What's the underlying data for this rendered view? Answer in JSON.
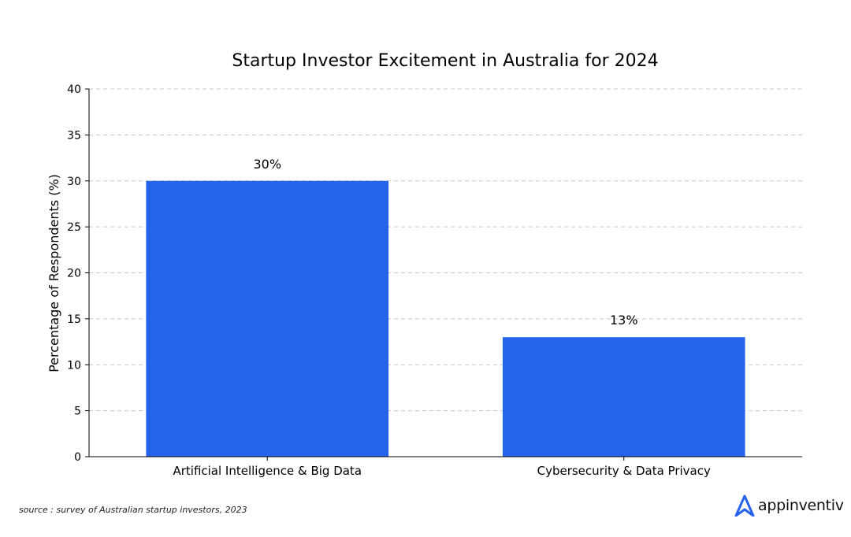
{
  "chart_data": {
    "type": "bar",
    "title": "Startup Investor Excitement in Australia for 2024",
    "xlabel": "",
    "ylabel": "Percentage of Respondents (%)",
    "categories": [
      "Artificial Intelligence & Big Data",
      "Cybersecurity & Data Privacy"
    ],
    "values": [
      30,
      13
    ],
    "data_labels": [
      "30%",
      "13%"
    ],
    "ylim": [
      0,
      40
    ],
    "yticks": [
      0,
      5,
      10,
      15,
      20,
      25,
      30,
      35,
      40
    ],
    "grid": "y-dashed",
    "bar_color": "#2563eb"
  },
  "footer": {
    "source": "source : survey of Australian startup investors, 2023",
    "brand": "appinventiv",
    "brand_color": "#2563eb"
  }
}
